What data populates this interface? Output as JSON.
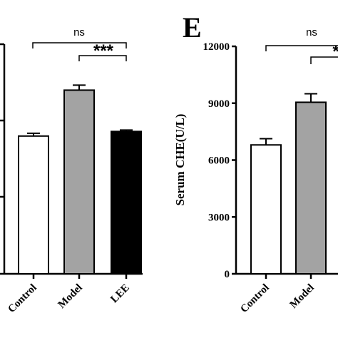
{
  "chart_data": [
    {
      "type": "bar",
      "panel_label": "",
      "title": "",
      "xlabel": "",
      "ylabel": "",
      "categories": [
        "Control",
        "Model",
        "LEE"
      ],
      "values": [
        6.0,
        8.0,
        6.2
      ],
      "errors": [
        0.12,
        0.22,
        0.06
      ],
      "colors": [
        "#ffffff",
        "#a3a3a3",
        "#000000"
      ],
      "ylim": [
        0,
        10
      ],
      "yticks": [],
      "grid": false,
      "significance": [
        {
          "from": "Control",
          "to": "LEE",
          "label": "ns"
        },
        {
          "from": "Model",
          "to": "LEE",
          "label": "***"
        }
      ]
    },
    {
      "type": "bar",
      "panel_label": "E",
      "title": "",
      "xlabel": "",
      "ylabel": "Serum CHE(U/L)",
      "categories": [
        "Control",
        "Model"
      ],
      "values": [
        6800,
        9050
      ],
      "errors": [
        330,
        450
      ],
      "colors": [
        "#ffffff",
        "#a3a3a3"
      ],
      "ylim": [
        0,
        12000
      ],
      "yticks": [
        "0",
        "3000",
        "6000",
        "9000",
        "12000"
      ],
      "grid": false,
      "significance": [
        {
          "from": "Control",
          "to": "LEE",
          "label": "ns"
        },
        {
          "from": "Model",
          "to": "LEE",
          "label": "*"
        }
      ]
    }
  ]
}
